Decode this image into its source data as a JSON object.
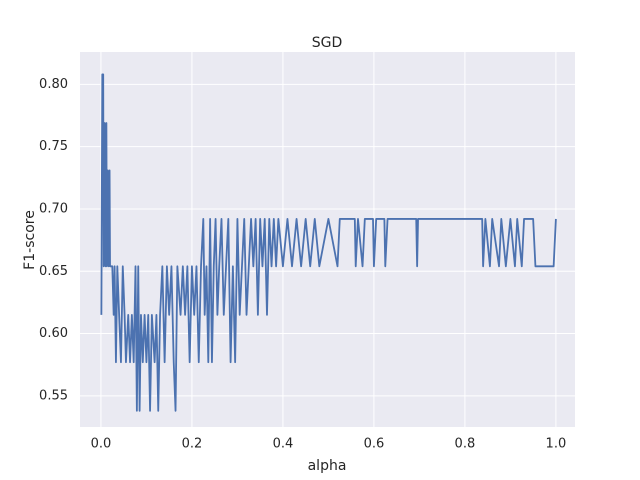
{
  "chart_data": {
    "type": "line",
    "title": "SGD",
    "x_label": "alpha",
    "y_label": "F1-score",
    "series": [
      {
        "color": "#4c72b0",
        "x": [
          0.001,
          0.003,
          0.005,
          0.006,
          0.008,
          0.01,
          0.012,
          0.013,
          0.015,
          0.017,
          0.019,
          0.02,
          0.025,
          0.028,
          0.03,
          0.033,
          0.036,
          0.04,
          0.044,
          0.048,
          0.052,
          0.055,
          0.06,
          0.064,
          0.068,
          0.072,
          0.076,
          0.079,
          0.082,
          0.085,
          0.088,
          0.092,
          0.096,
          0.1,
          0.104,
          0.108,
          0.112,
          0.118,
          0.122,
          0.126,
          0.13,
          0.135,
          0.14,
          0.145,
          0.15,
          0.155,
          0.16,
          0.164,
          0.168,
          0.175,
          0.18,
          0.185,
          0.19,
          0.195,
          0.2,
          0.205,
          0.21,
          0.215,
          0.22,
          0.225,
          0.228,
          0.232,
          0.236,
          0.24,
          0.244,
          0.248,
          0.252,
          0.256,
          0.26,
          0.265,
          0.27,
          0.275,
          0.28,
          0.285,
          0.29,
          0.295,
          0.3,
          0.305,
          0.31,
          0.315,
          0.32,
          0.325,
          0.33,
          0.335,
          0.34,
          0.345,
          0.35,
          0.355,
          0.36,
          0.365,
          0.37,
          0.375,
          0.38,
          0.385,
          0.39,
          0.4,
          0.41,
          0.42,
          0.43,
          0.44,
          0.45,
          0.46,
          0.47,
          0.48,
          0.5,
          0.52,
          0.525,
          0.558,
          0.56,
          0.565,
          0.575,
          0.58,
          0.598,
          0.6,
          0.605,
          0.623,
          0.625,
          0.63,
          0.693,
          0.695,
          0.697,
          0.838,
          0.84,
          0.845,
          0.855,
          0.86,
          0.875,
          0.88,
          0.89,
          0.9,
          0.91,
          0.915,
          0.925,
          0.93,
          0.95,
          0.955,
          0.975,
          0.985,
          0.995,
          1.0
        ],
        "values": [
          0.615,
          0.808,
          0.808,
          0.654,
          0.769,
          0.654,
          0.769,
          0.654,
          0.731,
          0.654,
          0.731,
          0.654,
          0.654,
          0.615,
          0.654,
          0.577,
          0.654,
          0.615,
          0.577,
          0.654,
          0.615,
          0.577,
          0.615,
          0.577,
          0.615,
          0.577,
          0.654,
          0.538,
          0.654,
          0.538,
          0.615,
          0.577,
          0.615,
          0.577,
          0.615,
          0.538,
          0.615,
          0.577,
          0.615,
          0.538,
          0.615,
          0.654,
          0.577,
          0.654,
          0.615,
          0.654,
          0.577,
          0.538,
          0.654,
          0.615,
          0.654,
          0.615,
          0.654,
          0.577,
          0.654,
          0.615,
          0.654,
          0.577,
          0.654,
          0.692,
          0.615,
          0.654,
          0.577,
          0.692,
          0.577,
          0.654,
          0.692,
          0.615,
          0.654,
          0.692,
          0.615,
          0.654,
          0.692,
          0.577,
          0.654,
          0.577,
          0.692,
          0.615,
          0.654,
          0.692,
          0.615,
          0.654,
          0.692,
          0.654,
          0.692,
          0.615,
          0.692,
          0.654,
          0.692,
          0.615,
          0.692,
          0.654,
          0.692,
          0.654,
          0.692,
          0.654,
          0.692,
          0.654,
          0.692,
          0.654,
          0.692,
          0.654,
          0.692,
          0.654,
          0.692,
          0.654,
          0.692,
          0.692,
          0.654,
          0.692,
          0.654,
          0.692,
          0.692,
          0.654,
          0.692,
          0.692,
          0.654,
          0.692,
          0.692,
          0.654,
          0.692,
          0.692,
          0.654,
          0.692,
          0.654,
          0.692,
          0.654,
          0.692,
          0.654,
          0.692,
          0.654,
          0.692,
          0.654,
          0.692,
          0.692,
          0.654,
          0.654,
          0.654,
          0.654,
          0.692
        ]
      }
    ],
    "xlim": [
      -0.046,
      1.042
    ],
    "ylim": [
      0.525,
      0.826
    ],
    "xticks": [
      {
        "value": 0,
        "label": "0.0"
      },
      0.2,
      0.4,
      0.6,
      0.8,
      {
        "value": 1,
        "label": "1.0"
      }
    ],
    "yticks": [
      0.55,
      {
        "value": 0.6,
        "label": "0.60"
      },
      0.65,
      {
        "value": 0.7,
        "label": "0.70"
      },
      0.75,
      {
        "value": 0.8,
        "label": "0.80"
      }
    ],
    "grid": true
  }
}
